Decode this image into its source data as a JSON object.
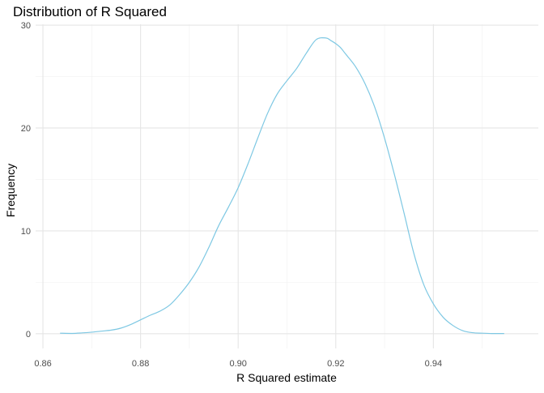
{
  "chart_data": {
    "type": "area",
    "title": "Distribution of R Squared",
    "xlabel": "R Squared estimate",
    "ylabel": "Frequency",
    "xlim": [
      0.8585,
      0.9615
    ],
    "ylim": [
      -1.43,
      30.08
    ],
    "x_ticks": [
      {
        "value": 0.86,
        "label": "0.86"
      },
      {
        "value": 0.88,
        "label": "0.88"
      },
      {
        "value": 0.9,
        "label": "0.90"
      },
      {
        "value": 0.92,
        "label": "0.92"
      },
      {
        "value": 0.94,
        "label": "0.94"
      }
    ],
    "y_ticks": [
      {
        "value": 0,
        "label": "0"
      },
      {
        "value": 10,
        "label": "10"
      },
      {
        "value": 20,
        "label": "20"
      },
      {
        "value": 30,
        "label": "30"
      }
    ],
    "grid": true,
    "legend": "none",
    "series": [
      {
        "color": "#7ec8e3",
        "x": [
          0.8635,
          0.866,
          0.868,
          0.87,
          0.872,
          0.874,
          0.876,
          0.878,
          0.88,
          0.882,
          0.884,
          0.886,
          0.888,
          0.89,
          0.892,
          0.894,
          0.896,
          0.898,
          0.9,
          0.902,
          0.904,
          0.906,
          0.908,
          0.91,
          0.912,
          0.914,
          0.916,
          0.918,
          0.919,
          0.92,
          0.921,
          0.922,
          0.924,
          0.926,
          0.928,
          0.93,
          0.932,
          0.934,
          0.936,
          0.938,
          0.94,
          0.942,
          0.944,
          0.946,
          0.948,
          0.95,
          0.952,
          0.9545
        ],
        "y": [
          0.05,
          0.03,
          0.08,
          0.15,
          0.25,
          0.35,
          0.55,
          0.9,
          1.35,
          1.8,
          2.2,
          2.8,
          3.8,
          5.0,
          6.5,
          8.4,
          10.5,
          12.3,
          14.2,
          16.5,
          19.0,
          21.4,
          23.3,
          24.6,
          25.8,
          27.3,
          28.6,
          28.75,
          28.5,
          28.2,
          27.8,
          27.2,
          26.0,
          24.3,
          22.0,
          19.0,
          15.5,
          11.7,
          7.8,
          4.8,
          2.9,
          1.6,
          0.8,
          0.3,
          0.1,
          0.05,
          0.02,
          0.02
        ]
      }
    ]
  }
}
